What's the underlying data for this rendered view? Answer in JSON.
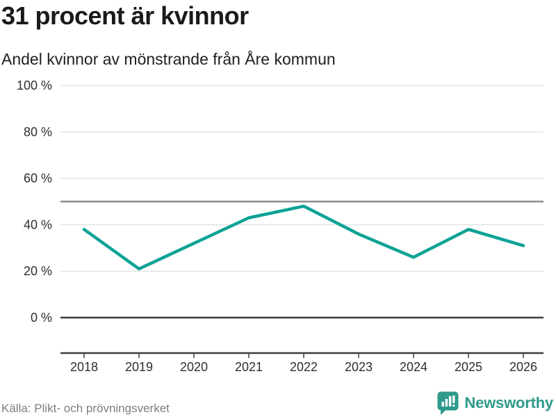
{
  "header": {
    "title": "31 procent är kvinnor",
    "subtitle": "Andel kvinnor av mönstrande från Åre kommun"
  },
  "chart_data": {
    "type": "line",
    "title": "31 procent är kvinnor",
    "subtitle": "Andel kvinnor av mönstrande från Åre kommun",
    "categories": [
      "2018",
      "2019",
      "2020",
      "2021",
      "2022",
      "2023",
      "2024",
      "2025",
      "2026"
    ],
    "series": [
      {
        "name": "Andel kvinnor av mönstrande",
        "values": [
          38,
          21,
          32,
          43,
          48,
          36,
          26,
          38,
          31
        ]
      }
    ],
    "ylim": [
      0,
      100
    ],
    "yticks": [
      0,
      20,
      40,
      60,
      80,
      100
    ],
    "ytick_labels": [
      "0 %",
      "20 %",
      "40 %",
      "60 %",
      "80 %",
      "100 %"
    ],
    "reference_line_value": 50,
    "grid": true,
    "legend": "none",
    "unit": "%"
  },
  "colors": {
    "line": "#0da296",
    "gridline": "#e3e3e3",
    "reference_line": "#8c8c8c",
    "axis_line": "#3d3d3d",
    "axis_text": "#2e2e2e",
    "brand_teal": "#2f9a8b"
  },
  "footer": {
    "source": "Källa: Plikt- och prövningsverket",
    "brand": "Newsworthy"
  }
}
